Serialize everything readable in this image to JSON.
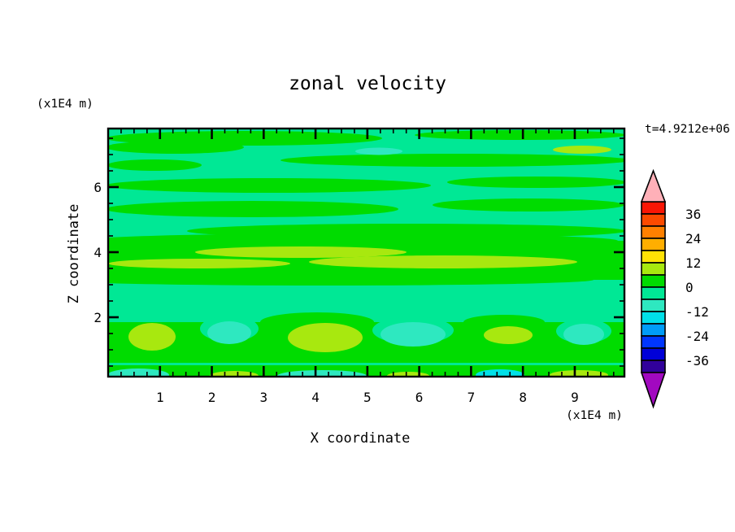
{
  "title": "zonal velocity",
  "time_label": "t=4.9212e+06",
  "axes": {
    "x": {
      "label": "X coordinate",
      "unit_label": "(x1E4 m)",
      "major_ticks": [
        1,
        2,
        3,
        4,
        5,
        6,
        7,
        8,
        9
      ],
      "minor_step": 0.25,
      "range": [
        0,
        9.95
      ]
    },
    "z": {
      "label": "Z coordinate",
      "unit_label": "(x1E4 m)",
      "major_ticks": [
        2,
        4,
        6
      ],
      "minor_step": 0.5,
      "range": [
        0.2,
        7.8
      ]
    }
  },
  "colorbar": {
    "tick_labels": [
      "36",
      "24",
      "12",
      "0",
      "-12",
      "-24",
      "-36"
    ],
    "box_values_top_to_bottom": [
      "36..42",
      "30..36",
      "24..30",
      "18..24",
      "12..18",
      "6..12",
      "0..6",
      "-6..0",
      "-12..-6",
      "-18..-12",
      "-24..-18",
      "-30..-24",
      "-36..-30",
      "-42..-36"
    ],
    "box_colors_top_to_bottom": [
      "#F91605",
      "#FB4A00",
      "#FF8000",
      "#FFAE00",
      "#FFE205",
      "#A8E80F",
      "#00DC00",
      "#00E895",
      "#2EE8C0",
      "#00E0E8",
      "#009CF8",
      "#0036FE",
      "#0000D8",
      "#31019B"
    ],
    "over_color": "#FFB0B8",
    "under_color": "#A209C0",
    "outline_color": "#000000"
  },
  "field_colors": {
    "background_neg1": "#00E895",
    "pos1_green": "#00DC00",
    "pos2_chartreuse": "#A8E80F",
    "neg2_turquoise": "#2EE8C0",
    "neg3_cyan": "#00E0E8",
    "frame": "#000000"
  },
  "chart_data": {
    "type": "heatmap",
    "subtype": "filled_contour",
    "title": "zonal velocity",
    "annotation": "t=4.9212e+06",
    "xlabel": "X coordinate",
    "x_units": "x1E4 m",
    "x_range": [
      0,
      9.95
    ],
    "x_major_ticks": [
      1,
      2,
      3,
      4,
      5,
      6,
      7,
      8,
      9
    ],
    "ylabel": "Z coordinate",
    "y_units": "x1E4 m",
    "y_range": [
      0.2,
      7.8
    ],
    "y_major_ticks": [
      2,
      4,
      6
    ],
    "contour_levels": [
      -42,
      -36,
      -30,
      -24,
      -18,
      -12,
      -6,
      0,
      6,
      12,
      18,
      24,
      30,
      36,
      42
    ],
    "colorbar_labels": [
      36,
      24,
      12,
      0,
      -12,
      -24,
      -36
    ],
    "legend_position": "right",
    "grid": false,
    "field_summary": [
      {
        "region": "z 5.5-7.8",
        "value_band": "-6..6",
        "pattern": "alternating horizontal streaks of 0..6 (green) in -6..0 (spring green) background"
      },
      {
        "region": "z 3.5-4.8",
        "value_band": "0..12",
        "pattern": "broad 0..6 band with 6..12 chartreuse streaks near z=4"
      },
      {
        "region": "z 2.5-3.5",
        "value_band": "-6..0",
        "pattern": "mostly spring green gap"
      },
      {
        "region": "z 0.8-2.2",
        "value_band": "-12..18",
        "pattern": "wavy 0..6 band with 6..12 blobs at x~1.3, 4.2, 7.7 and -12..-6 turquoise patches at x~2.3, 5.9, 9.2"
      },
      {
        "region": "z 0-0.4",
        "value_band": "-18..12",
        "pattern": "bottom strip with turquoise/cyan and chartreuse patches along the axis"
      }
    ]
  }
}
